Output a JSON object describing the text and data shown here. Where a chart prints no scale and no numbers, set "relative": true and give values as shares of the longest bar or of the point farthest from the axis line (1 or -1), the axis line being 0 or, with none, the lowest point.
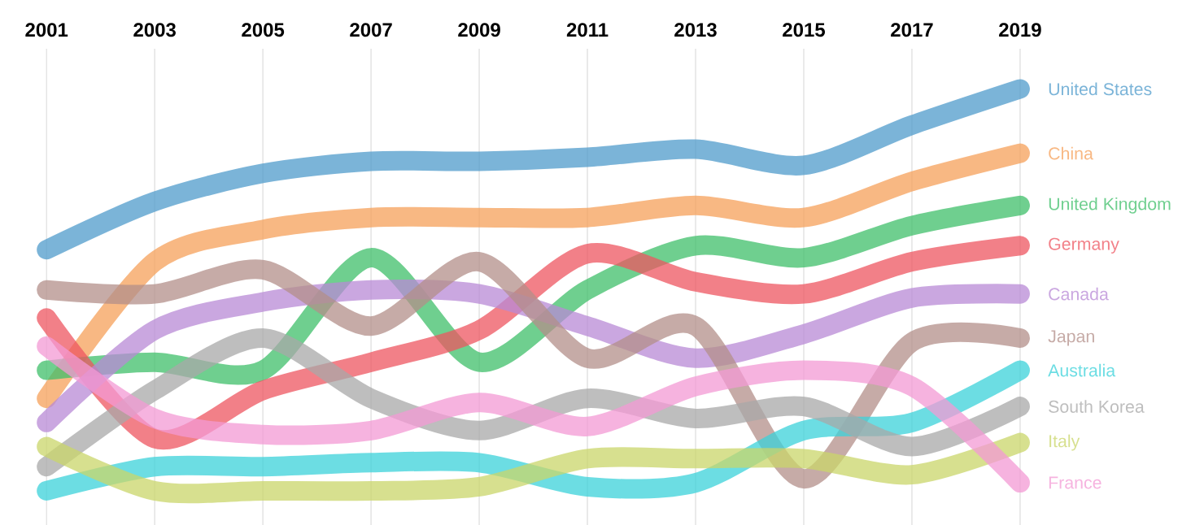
{
  "chart_data": {
    "type": "line",
    "relative": true,
    "grid": "x",
    "categories": [
      "2001",
      "2003",
      "2005",
      "2007",
      "2009",
      "2011",
      "2013",
      "2015",
      "2017",
      "2019"
    ],
    "series": [
      {
        "name": "United States",
        "color": "#4f9bcb",
        "values": [
          0.6,
          0.72,
          0.79,
          0.82,
          0.82,
          0.83,
          0.85,
          0.81,
          0.91,
          1
        ]
      },
      {
        "name": "China",
        "color": "#f5a05a",
        "values": [
          0.23,
          0.57,
          0.65,
          0.68,
          0.68,
          0.68,
          0.71,
          0.68,
          0.77,
          0.84
        ]
      },
      {
        "name": "United Kingdom",
        "color": "#3fbf6a",
        "values": [
          0.3,
          0.32,
          0.3,
          0.58,
          0.32,
          0.5,
          0.61,
          0.58,
          0.66,
          0.71
        ]
      },
      {
        "name": "Germany",
        "color": "#ee5560",
        "values": [
          0.43,
          0.13,
          0.25,
          0.32,
          0.4,
          0.59,
          0.52,
          0.49,
          0.57,
          0.61
        ]
      },
      {
        "name": "Canada",
        "color": "#b88ad6",
        "values": [
          0.17,
          0.4,
          0.47,
          0.5,
          0.49,
          0.41,
          0.33,
          0.39,
          0.48,
          0.49
        ]
      },
      {
        "name": "Japan",
        "color": "#b38f8a",
        "values": [
          0.5,
          0.49,
          0.55,
          0.41,
          0.57,
          0.33,
          0.41,
          0.03,
          0.37,
          0.38
        ]
      },
      {
        "name": "Australia",
        "color": "#3bd1d9",
        "values": [
          0,
          0.06,
          0.06,
          0.07,
          0.07,
          0.01,
          0.02,
          0.15,
          0.17,
          0.3
        ]
      },
      {
        "name": "South Korea",
        "color": "#a8a8a8",
        "values": [
          0.06,
          0.25,
          0.38,
          0.23,
          0.15,
          0.23,
          0.18,
          0.21,
          0.11,
          0.21
        ]
      },
      {
        "name": "Italy",
        "color": "#c9d66a",
        "values": [
          0.11,
          0,
          0,
          0,
          0.01,
          0.08,
          0.08,
          0.08,
          0.04,
          0.12
        ]
      },
      {
        "name": "France",
        "color": "#f39ad4",
        "values": [
          0.36,
          0.18,
          0.14,
          0.15,
          0.22,
          0.16,
          0.26,
          0.3,
          0.26,
          0.02
        ]
      }
    ]
  }
}
